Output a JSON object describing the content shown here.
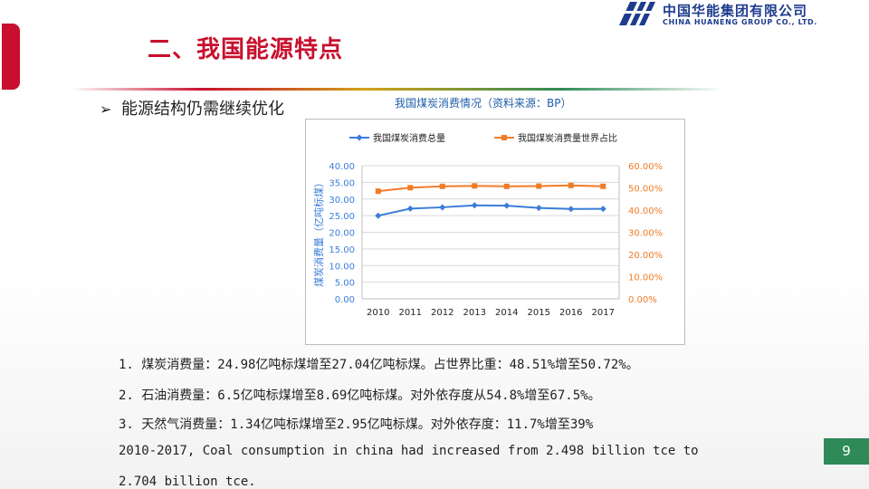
{
  "slide": {
    "title": "二、我国能源特点",
    "bullet_marker": "➢",
    "bullet_text": "能源结构仍需继续优化",
    "page_number": "9",
    "notes": [
      "1. 煤炭消费量：24.98亿吨标煤增至27.04亿吨标煤。占世界比重：48.51%增至50.72%。",
      "2. 石油消费量：6.5亿吨标煤增至8.69亿吨标煤。对外依存度从54.8%增至67.5%。",
      "3. 天然气消费量：1.34亿吨标煤增至2.95亿吨标煤。对外依存度：11.7%增至39%",
      "2010-2017, Coal consumption in china had increased from 2.498 billion tce to",
      "2.704 billion tce."
    ]
  },
  "logo": {
    "cn": "中国华能集团有限公司",
    "en": "CHINA HUANENG GROUP CO., LTD."
  },
  "colors": {
    "accent": "#c8102e",
    "brand_blue": "#1d3c8f",
    "page_badge": "#2e8b57",
    "series_total": "#3b7dd8",
    "series_share": "#f07c28"
  },
  "chart_data": {
    "type": "line",
    "title": "我国煤炭消费情况（资料来源：BP）",
    "categories": [
      "2010",
      "2011",
      "2012",
      "2013",
      "2014",
      "2015",
      "2016",
      "2017"
    ],
    "ylabel": "煤炭消费量（亿吨标煤）",
    "ylim": [
      0,
      40
    ],
    "yticks": [
      "0.00",
      "5.00",
      "10.00",
      "15.00",
      "20.00",
      "25.00",
      "30.00",
      "35.00",
      "40.00"
    ],
    "y2lim": [
      0,
      0.6
    ],
    "y2ticks": [
      "0.00%",
      "10.00%",
      "20.00%",
      "30.00%",
      "40.00%",
      "50.00%",
      "60.00%"
    ],
    "legend_position": "top",
    "grid": true,
    "series": [
      {
        "name": "我国煤炭消费总量",
        "axis": "left",
        "marker": "diamond",
        "values": [
          24.98,
          27.1,
          27.5,
          28.1,
          28.0,
          27.3,
          27.0,
          27.04
        ]
      },
      {
        "name": "我国煤炭消费量世界占比",
        "axis": "right",
        "marker": "square",
        "values": [
          0.4851,
          0.501,
          0.507,
          0.509,
          0.507,
          0.508,
          0.511,
          0.5072
        ]
      }
    ]
  }
}
